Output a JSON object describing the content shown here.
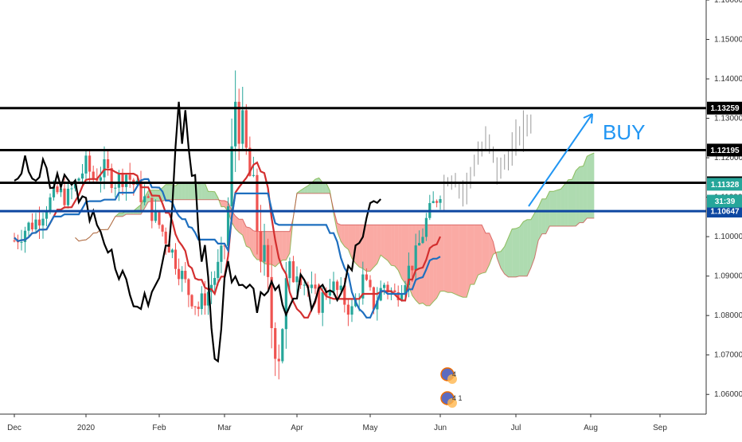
{
  "chart_data": {
    "type": "candlestick",
    "symbol_hint": "EURUSD",
    "ylim": [
      1.055,
      1.16
    ],
    "y_ticks": [
      "1.16000",
      "1.15000",
      "1.14000",
      "1.13000",
      "1.12000",
      "1.11000",
      "1.10000",
      "1.09000",
      "1.08000",
      "1.07000",
      "1.06000"
    ],
    "x_ticks": [
      "Dec",
      "2020",
      "Feb",
      "Mar",
      "Apr",
      "May",
      "Jun",
      "Jul",
      "Aug",
      "Sep"
    ],
    "x_tick_values": [
      0,
      1,
      2,
      3,
      4,
      5,
      6,
      7,
      8,
      9
    ],
    "horizontal_levels": [
      {
        "value": 1.13259,
        "label": "1.13259",
        "color": "#000000"
      },
      {
        "value": 1.12195,
        "label": "1.12195",
        "color": "#000000"
      },
      {
        "value": 1.11366,
        "label": "1.11366",
        "color": "#000000"
      },
      {
        "value": 1.10647,
        "label": "1.10647",
        "color": "#0d47a1"
      }
    ],
    "price_tags": [
      {
        "value": 1.11328,
        "label": "1.11328",
        "color": "#26a69a"
      },
      {
        "value": 1.109,
        "label": "31:39",
        "color": "#26a69a"
      }
    ],
    "annotation": {
      "text": "BUY",
      "color": "#2196f3"
    },
    "ichimoku": {
      "tenkan_color": "#d32f2f",
      "kijun_color": "#1e6fbf",
      "chikou_color": "#000000",
      "cloud_bull": "#4caf50",
      "cloud_bear": "#f44336"
    },
    "price_path": [
      [
        0.0,
        1.099
      ],
      [
        0.15,
        1.102
      ],
      [
        0.3,
        1.104
      ],
      [
        0.45,
        1.108
      ],
      [
        0.6,
        1.111
      ],
      [
        0.75,
        1.11
      ],
      [
        0.9,
        1.115
      ],
      [
        1.0,
        1.118
      ],
      [
        1.1,
        1.115
      ],
      [
        1.25,
        1.117
      ],
      [
        1.4,
        1.114
      ],
      [
        1.55,
        1.116
      ],
      [
        1.7,
        1.112
      ],
      [
        1.85,
        1.108
      ],
      [
        2.0,
        1.103
      ],
      [
        2.15,
        1.098
      ],
      [
        2.3,
        1.092
      ],
      [
        2.45,
        1.086
      ],
      [
        2.6,
        1.082
      ],
      [
        2.75,
        1.086
      ],
      [
        2.9,
        1.092
      ],
      [
        3.0,
        1.098
      ],
      [
        3.08,
        1.113
      ],
      [
        3.15,
        1.135
      ],
      [
        3.25,
        1.125
      ],
      [
        3.35,
        1.115
      ],
      [
        3.45,
        1.103
      ],
      [
        3.55,
        1.092
      ],
      [
        3.65,
        1.078
      ],
      [
        3.75,
        1.072
      ],
      [
        3.85,
        1.086
      ],
      [
        4.0,
        1.092
      ],
      [
        4.15,
        1.087
      ],
      [
        4.3,
        1.083
      ],
      [
        4.45,
        1.088
      ],
      [
        4.6,
        1.085
      ],
      [
        4.75,
        1.081
      ],
      [
        4.9,
        1.089
      ],
      [
        5.05,
        1.083
      ],
      [
        5.2,
        1.088
      ],
      [
        5.35,
        1.085
      ],
      [
        5.5,
        1.09
      ],
      [
        5.65,
        1.095
      ],
      [
        5.8,
        1.104
      ],
      [
        6.0,
        1.112
      ],
      [
        6.15,
        1.117
      ],
      [
        6.3,
        1.111
      ],
      [
        6.45,
        1.12
      ],
      [
        6.6,
        1.124
      ],
      [
        6.75,
        1.116
      ],
      [
        6.9,
        1.121
      ],
      [
        7.05,
        1.126
      ],
      [
        7.2,
        1.13
      ]
    ]
  },
  "indicator_badges": [
    {
      "label": "4"
    },
    {
      "label": "4 1"
    }
  ]
}
